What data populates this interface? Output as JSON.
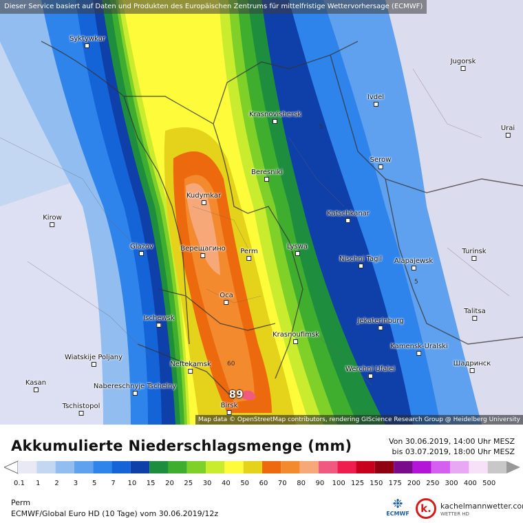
{
  "banner": "Dieser Service basiert auf Daten und Produkten des Europäischen Zentrums für mittelfristige Wettervorhersage (ECMWF)",
  "attribution": "Map data © OpenStreetMap contributors, rendering GIScience Research Group @ Heidelberg University",
  "cities": [
    {
      "name": "Syktywkar"
    },
    {
      "name": "Jugorsk"
    },
    {
      "name": "Ivdel"
    },
    {
      "name": "Krasnovishersk"
    },
    {
      "name": "Urai"
    },
    {
      "name": "Beresniki"
    },
    {
      "name": "Serow"
    },
    {
      "name": "Kudymkar"
    },
    {
      "name": "Katschkanar"
    },
    {
      "name": "Kirow"
    },
    {
      "name": "Glazov"
    },
    {
      "name": "Верещагино"
    },
    {
      "name": "Perm"
    },
    {
      "name": "Lyswa"
    },
    {
      "name": "Nischni Tagil"
    },
    {
      "name": "Alapajewsk"
    },
    {
      "name": "Turinsk"
    },
    {
      "name": "Оса"
    },
    {
      "name": "Talitsa"
    },
    {
      "name": "Ischewsk"
    },
    {
      "name": "Jekaterinburg"
    },
    {
      "name": "Krasnoufimsk"
    },
    {
      "name": "Kamensk-Uralski"
    },
    {
      "name": "Wiatskije Poljany"
    },
    {
      "name": "Neftekamsk"
    },
    {
      "name": "Werchni Ufalei"
    },
    {
      "name": "Шадринск"
    },
    {
      "name": "Nabereschnyje Tschelny"
    },
    {
      "name": "Kasan"
    },
    {
      "name": "Tschistopol"
    },
    {
      "name": "Birsk"
    }
  ],
  "contour_labels": [
    "5",
    "5",
    "60"
  ],
  "max_value": "89",
  "legend": {
    "title": "Akkumulierte Niederschlagsmenge (mm)",
    "date_from": "Von 30.06.2019, 14:00 Uhr MESZ",
    "date_to": "bis 03.07.2019, 18:00 Uhr MESZ",
    "scale": [
      {
        "label": "0.1",
        "color": "#e9e9f6"
      },
      {
        "label": "1",
        "color": "#c3d6f2"
      },
      {
        "label": "2",
        "color": "#92bdf0"
      },
      {
        "label": "3",
        "color": "#5fa1ee"
      },
      {
        "label": "5",
        "color": "#2f84ec"
      },
      {
        "label": "7",
        "color": "#1464d8"
      },
      {
        "label": "10",
        "color": "#0f3fa8"
      },
      {
        "label": "15",
        "color": "#1e8e3e"
      },
      {
        "label": "20",
        "color": "#3fae2f"
      },
      {
        "label": "25",
        "color": "#7fd12a"
      },
      {
        "label": "30",
        "color": "#c9ec2f"
      },
      {
        "label": "40",
        "color": "#fdfb3a"
      },
      {
        "label": "50",
        "color": "#e5d21a"
      },
      {
        "label": "60",
        "color": "#ec6a0d"
      },
      {
        "label": "70",
        "color": "#f38a2d"
      },
      {
        "label": "80",
        "color": "#f7a879"
      },
      {
        "label": "90",
        "color": "#f05a80"
      },
      {
        "label": "100",
        "color": "#ee1d4d"
      },
      {
        "label": "125",
        "color": "#c8001e"
      },
      {
        "label": "150",
        "color": "#8f0010"
      },
      {
        "label": "175",
        "color": "#7a0c8c"
      },
      {
        "label": "200",
        "color": "#b414d8"
      },
      {
        "label": "250",
        "color": "#d45ff0"
      },
      {
        "label": "300",
        "color": "#e9a8f4"
      },
      {
        "label": "400",
        "color": "#f7e1f8"
      },
      {
        "label": "500",
        "color": "#c8c8c8"
      }
    ]
  },
  "footer": {
    "location": "Perm",
    "model": "ECMWF/Global Euro HD (10 Tage) vom 30.06.2019/12z"
  },
  "logos": {
    "ecmwf": "ECMWF",
    "kachelmann": "kachelmannwetter.com",
    "kachelmann_sub": "WETTER HD"
  }
}
